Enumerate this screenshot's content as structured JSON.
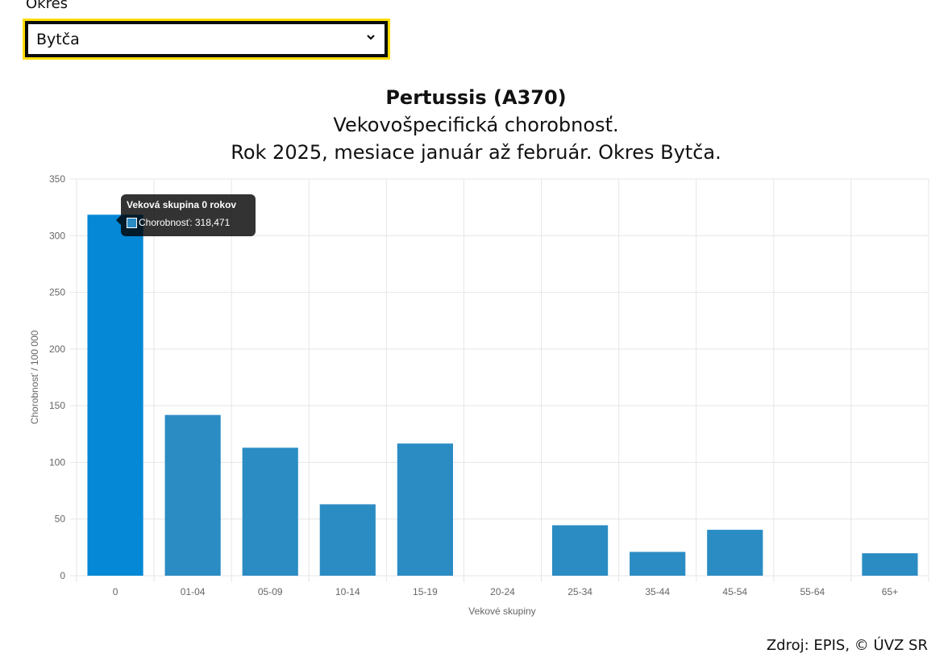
{
  "filter": {
    "label": "Okres",
    "selected": "Bytča"
  },
  "titles": {
    "line1": "Pertussis (A370)",
    "line2": "Vekovošpecifická chorobnosť.",
    "line3": "Rok 2025, mesiace január až február. Okres Bytča."
  },
  "tooltip": {
    "title": "Veková skupina 0 rokov",
    "body": "Chorobnosť: 318,471"
  },
  "source": "Zdroj: EPIS, © ÚVZ SR",
  "colors": {
    "bar": "#2b8cc4",
    "bar_active": "#0588d5",
    "grid": "#e6e6e6",
    "tick": "#666666",
    "focus": "#ffdd00"
  },
  "chart_data": {
    "type": "bar",
    "xlabel": "Vekové skupiny",
    "ylabel": "Chorobnosť / 100 000",
    "ylim": [
      0,
      350
    ],
    "yticks": [
      0,
      50,
      100,
      150,
      200,
      250,
      300,
      350
    ],
    "categories": [
      "0",
      "01-04",
      "05-09",
      "10-14",
      "15-19",
      "20-24",
      "25-34",
      "35-44",
      "45-54",
      "55-64",
      "65+"
    ],
    "values": [
      318.471,
      141.8,
      112.9,
      63.0,
      116.6,
      0,
      44.5,
      21.0,
      40.5,
      0,
      19.8
    ],
    "active_index": 0,
    "grid": true,
    "legend": "none"
  }
}
